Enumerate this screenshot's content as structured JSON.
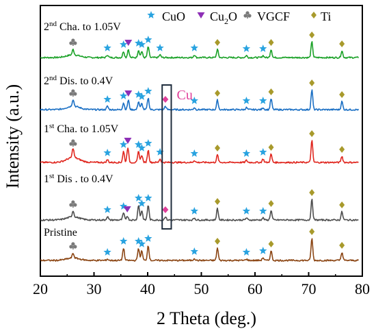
{
  "chart_data": {
    "type": "line",
    "xlabel": "2 Theta (deg.)",
    "ylabel": "Intensity (a.u.)",
    "xlim": [
      20,
      80
    ],
    "xticks": [
      20,
      30,
      40,
      50,
      60,
      70,
      80
    ],
    "yticks_shown": false,
    "legend": {
      "placement": "top",
      "items": [
        {
          "label": "CuO",
          "marker": "star",
          "color": "#29a3e0"
        },
        {
          "label": "Cu₂O",
          "marker": "triangle-down",
          "color": "#8e2fb6"
        },
        {
          "label": "VGCF",
          "marker": "club",
          "color": "#7a7a7a"
        },
        {
          "label": "Ti",
          "marker": "diamond",
          "color": "#a89a2c"
        }
      ]
    },
    "annotation": {
      "text": "Cu",
      "color": "#e0409a",
      "box_x_range": [
        42.7,
        44.4
      ]
    },
    "series": [
      {
        "label": "2nd Cha. to 1.05V",
        "label_parts": {
          "num": "2",
          "sup": "nd",
          "rest": " Cha. to 1.05V"
        },
        "color": "#1aa127",
        "peaks": [
          {
            "x": 26.1,
            "h": 8
          },
          {
            "x": 32.5,
            "h": 4
          },
          {
            "x": 35.5,
            "h": 9
          },
          {
            "x": 36.4,
            "h": 12
          },
          {
            "x": 38.3,
            "h": 11
          },
          {
            "x": 38.9,
            "h": 9
          },
          {
            "x": 40.1,
            "h": 16
          },
          {
            "x": 42.3,
            "h": 4
          },
          {
            "x": 48.7,
            "h": 4
          },
          {
            "x": 53.0,
            "h": 12
          },
          {
            "x": 58.4,
            "h": 3
          },
          {
            "x": 61.5,
            "h": 3
          },
          {
            "x": 63.0,
            "h": 12
          },
          {
            "x": 70.6,
            "h": 23
          },
          {
            "x": 76.2,
            "h": 10
          }
        ],
        "markers": [
          {
            "x": 26.1,
            "type": "club"
          },
          {
            "x": 32.5,
            "type": "star"
          },
          {
            "x": 35.5,
            "type": "star"
          },
          {
            "x": 36.4,
            "type": "triangle"
          },
          {
            "x": 38.3,
            "type": "star"
          },
          {
            "x": 38.9,
            "type": "star"
          },
          {
            "x": 40.1,
            "type": "star"
          },
          {
            "x": 42.3,
            "type": "star"
          },
          {
            "x": 48.7,
            "type": "star"
          },
          {
            "x": 53.0,
            "type": "diamond"
          },
          {
            "x": 58.4,
            "type": "star"
          },
          {
            "x": 61.5,
            "type": "star"
          },
          {
            "x": 63.0,
            "type": "diamond"
          },
          {
            "x": 70.6,
            "type": "diamond"
          },
          {
            "x": 76.2,
            "type": "diamond"
          }
        ]
      },
      {
        "label": "2nd Dis. to 0.4V",
        "label_parts": {
          "num": "2",
          "sup": "nd",
          "rest": " Dis. to 0.4V"
        },
        "color": "#1a6fc4",
        "peaks": [
          {
            "x": 26.1,
            "h": 10
          },
          {
            "x": 32.5,
            "h": 5
          },
          {
            "x": 35.5,
            "h": 10
          },
          {
            "x": 36.4,
            "h": 14
          },
          {
            "x": 38.3,
            "h": 12
          },
          {
            "x": 38.9,
            "h": 9
          },
          {
            "x": 40.1,
            "h": 17
          },
          {
            "x": 43.3,
            "h": 5
          },
          {
            "x": 48.7,
            "h": 3
          },
          {
            "x": 53.0,
            "h": 14
          },
          {
            "x": 58.4,
            "h": 3
          },
          {
            "x": 61.5,
            "h": 3
          },
          {
            "x": 63.0,
            "h": 16
          },
          {
            "x": 70.6,
            "h": 29
          },
          {
            "x": 76.2,
            "h": 12
          }
        ],
        "markers": [
          {
            "x": 26.1,
            "type": "club"
          },
          {
            "x": 32.5,
            "type": "star"
          },
          {
            "x": 35.5,
            "type": "star"
          },
          {
            "x": 36.4,
            "type": "triangle"
          },
          {
            "x": 38.3,
            "type": "star"
          },
          {
            "x": 38.9,
            "type": "star"
          },
          {
            "x": 40.1,
            "type": "star"
          },
          {
            "x": 43.3,
            "type": "cu-diamond"
          },
          {
            "x": 48.7,
            "type": "star"
          },
          {
            "x": 53.0,
            "type": "diamond"
          },
          {
            "x": 58.4,
            "type": "star"
          },
          {
            "x": 61.5,
            "type": "star"
          },
          {
            "x": 63.0,
            "type": "diamond"
          },
          {
            "x": 70.6,
            "type": "diamond"
          },
          {
            "x": 76.2,
            "type": "diamond"
          }
        ]
      },
      {
        "label": "1st Cha. to 1.05V",
        "label_parts": {
          "num": "1",
          "sup": "st",
          "rest": " Cha. to 1.05V"
        },
        "color": "#e0261e",
        "peaks": [
          {
            "x": 26.1,
            "h": 14
          },
          {
            "x": 32.5,
            "h": 4
          },
          {
            "x": 35.5,
            "h": 16
          },
          {
            "x": 36.3,
            "h": 22
          },
          {
            "x": 38.3,
            "h": 16
          },
          {
            "x": 38.9,
            "h": 11
          },
          {
            "x": 40.1,
            "h": 18
          },
          {
            "x": 42.3,
            "h": 5
          },
          {
            "x": 48.7,
            "h": 3
          },
          {
            "x": 53.0,
            "h": 11
          },
          {
            "x": 58.4,
            "h": 3
          },
          {
            "x": 61.5,
            "h": 5
          },
          {
            "x": 63.0,
            "h": 12
          },
          {
            "x": 70.6,
            "h": 32
          },
          {
            "x": 76.2,
            "h": 9
          }
        ],
        "markers": [
          {
            "x": 26.1,
            "type": "club"
          },
          {
            "x": 32.5,
            "type": "star"
          },
          {
            "x": 35.5,
            "type": "star"
          },
          {
            "x": 36.3,
            "type": "triangle"
          },
          {
            "x": 38.3,
            "type": "star"
          },
          {
            "x": 38.9,
            "type": "star"
          },
          {
            "x": 40.1,
            "type": "star"
          },
          {
            "x": 42.3,
            "type": "star"
          },
          {
            "x": 48.7,
            "type": "star"
          },
          {
            "x": 53.0,
            "type": "diamond"
          },
          {
            "x": 58.4,
            "type": "star"
          },
          {
            "x": 61.5,
            "type": "star"
          },
          {
            "x": 63.0,
            "type": "diamond"
          },
          {
            "x": 70.6,
            "type": "diamond"
          },
          {
            "x": 76.2,
            "type": "diamond"
          }
        ]
      },
      {
        "label": "1st Dis . to 0.4V",
        "label_parts": {
          "num": "1",
          "sup": "st",
          "rest": " Dis . to 0.4V"
        },
        "color": "#4d4d4d",
        "peaks": [
          {
            "x": 26.1,
            "h": 9
          },
          {
            "x": 32.5,
            "h": 5
          },
          {
            "x": 35.5,
            "h": 10
          },
          {
            "x": 36.2,
            "h": 6
          },
          {
            "x": 38.3,
            "h": 22
          },
          {
            "x": 38.9,
            "h": 14
          },
          {
            "x": 40.1,
            "h": 22
          },
          {
            "x": 43.3,
            "h": 5
          },
          {
            "x": 48.7,
            "h": 3
          },
          {
            "x": 53.0,
            "h": 17
          },
          {
            "x": 58.4,
            "h": 3
          },
          {
            "x": 61.5,
            "h": 3
          },
          {
            "x": 63.0,
            "h": 14
          },
          {
            "x": 70.6,
            "h": 30
          },
          {
            "x": 76.2,
            "h": 12
          }
        ],
        "markers": [
          {
            "x": 26.1,
            "type": "club"
          },
          {
            "x": 32.5,
            "type": "star"
          },
          {
            "x": 35.5,
            "type": "star"
          },
          {
            "x": 36.2,
            "type": "triangle"
          },
          {
            "x": 38.3,
            "type": "star"
          },
          {
            "x": 38.9,
            "type": "star"
          },
          {
            "x": 40.1,
            "type": "star"
          },
          {
            "x": 43.3,
            "type": "cu-diamond"
          },
          {
            "x": 48.7,
            "type": "star"
          },
          {
            "x": 53.0,
            "type": "diamond"
          },
          {
            "x": 58.4,
            "type": "star"
          },
          {
            "x": 61.5,
            "type": "star"
          },
          {
            "x": 63.0,
            "type": "diamond"
          },
          {
            "x": 70.6,
            "type": "diamond"
          },
          {
            "x": 76.2,
            "type": "diamond"
          }
        ]
      },
      {
        "label": "Pristine",
        "label_parts": {
          "num": "",
          "sup": "",
          "rest": "Pristine"
        },
        "color": "#8b4513",
        "peaks": [
          {
            "x": 26.1,
            "h": 7
          },
          {
            "x": 32.5,
            "h": 2
          },
          {
            "x": 35.5,
            "h": 18
          },
          {
            "x": 38.3,
            "h": 18
          },
          {
            "x": 38.9,
            "h": 14
          },
          {
            "x": 40.1,
            "h": 22
          },
          {
            "x": 48.7,
            "h": 3
          },
          {
            "x": 53.0,
            "h": 18
          },
          {
            "x": 58.4,
            "h": 2
          },
          {
            "x": 61.5,
            "h": 4
          },
          {
            "x": 63.0,
            "h": 14
          },
          {
            "x": 70.6,
            "h": 32
          },
          {
            "x": 76.2,
            "h": 12
          }
        ],
        "markers": [
          {
            "x": 26.1,
            "type": "club"
          },
          {
            "x": 32.5,
            "type": "star"
          },
          {
            "x": 35.5,
            "type": "star"
          },
          {
            "x": 38.3,
            "type": "star"
          },
          {
            "x": 38.9,
            "type": "star"
          },
          {
            "x": 40.1,
            "type": "star"
          },
          {
            "x": 48.7,
            "type": "star"
          },
          {
            "x": 53.0,
            "type": "diamond"
          },
          {
            "x": 58.4,
            "type": "star"
          },
          {
            "x": 61.5,
            "type": "star"
          },
          {
            "x": 63.0,
            "type": "diamond"
          },
          {
            "x": 70.6,
            "type": "diamond"
          },
          {
            "x": 76.2,
            "type": "diamond"
          }
        ]
      }
    ]
  }
}
